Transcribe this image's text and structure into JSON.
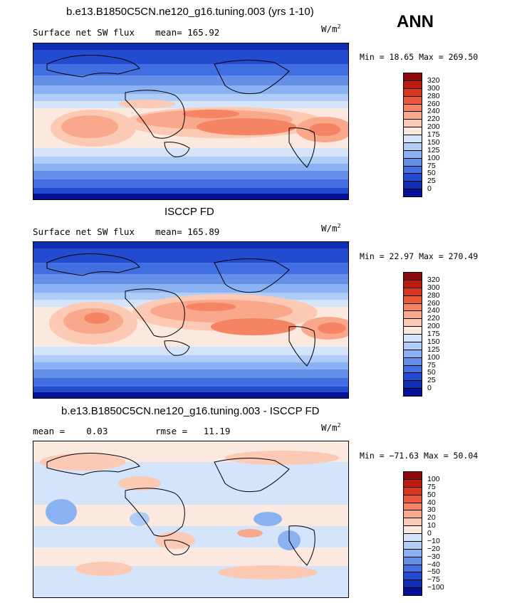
{
  "season": "ANN",
  "panels": [
    {
      "id": "model",
      "title": "b.e13.B1850C5CN.ne120_g16.tuning.003 (yrs 1-10)",
      "left_label": "Surface net SW flux",
      "center_label": "mean= 165.92",
      "units_base": "W/m",
      "units_sup": "2",
      "minmax": "Min =  18.65 Max = 269.50",
      "colorbar": {
        "labels": [
          "320",
          "300",
          "280",
          "260",
          "240",
          "220",
          "200",
          "175",
          "150",
          "125",
          "100",
          "75",
          "50",
          "25",
          "0"
        ],
        "colors": [
          "#8e0a0a",
          "#bd1a12",
          "#d9351e",
          "#ea5a3a",
          "#f48463",
          "#f9a88c",
          "#fbc9b4",
          "#fbe8df",
          "#d4e4fb",
          "#b0cdf7",
          "#8ab1f1",
          "#6590ea",
          "#416ee0",
          "#224bd0",
          "#0f2cb5",
          "#061296"
        ]
      }
    },
    {
      "id": "obs",
      "title": "ISCCP FD",
      "left_label": "Surface net SW flux",
      "center_label": "mean= 165.89",
      "units_base": "W/m",
      "units_sup": "2",
      "minmax": "Min =  22.97 Max = 270.49",
      "colorbar": {
        "labels": [
          "320",
          "300",
          "280",
          "260",
          "240",
          "220",
          "200",
          "175",
          "150",
          "125",
          "100",
          "75",
          "50",
          "25",
          "0"
        ],
        "colors": [
          "#8e0a0a",
          "#bd1a12",
          "#d9351e",
          "#ea5a3a",
          "#f48463",
          "#f9a88c",
          "#fbc9b4",
          "#fbe8df",
          "#d4e4fb",
          "#b0cdf7",
          "#8ab1f1",
          "#6590ea",
          "#416ee0",
          "#224bd0",
          "#0f2cb5",
          "#061296"
        ]
      }
    },
    {
      "id": "diff",
      "title": "b.e13.B1850C5CN.ne120_g16.tuning.003 - ISCCP FD",
      "left_label": "mean =    0.03",
      "center_label": "rmse =   11.19",
      "units_base": "W/m",
      "units_sup": "2",
      "minmax": "Min = −71.63 Max =  50.04",
      "colorbar": {
        "labels": [
          "100",
          "75",
          "50",
          "40",
          "30",
          "20",
          "10",
          "0",
          "−10",
          "−20",
          "−30",
          "−40",
          "−50",
          "−75",
          "−100"
        ],
        "colors": [
          "#8e0a0a",
          "#bd1a12",
          "#d9351e",
          "#ea5a3a",
          "#f48463",
          "#f9a88c",
          "#fbc9b4",
          "#fbe8df",
          "#d4e4fb",
          "#b0cdf7",
          "#8ab1f1",
          "#6590ea",
          "#416ee0",
          "#224bd0",
          "#0f2cb5",
          "#061296"
        ]
      }
    }
  ]
}
